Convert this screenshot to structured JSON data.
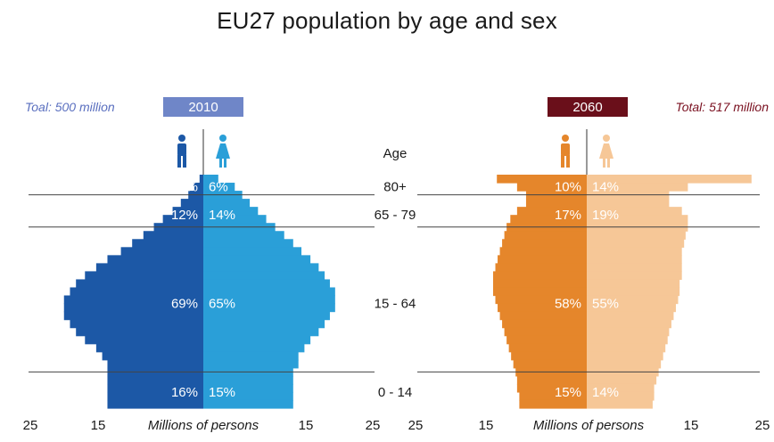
{
  "title": "EU27 population by age and sex",
  "colors": {
    "male_2010": "#1c58a6",
    "female_2010": "#2a9fd8",
    "male_2060": "#e5862b",
    "female_2060": "#f6c797",
    "badge_2010": "#6f86c8",
    "badge_2060": "#6a0f1a",
    "total_2010_text": "#5a6fbf",
    "total_2060_text": "#7a1020",
    "divider": "#444444"
  },
  "icons": {
    "male": "male-figure-icon",
    "female": "female-figure-icon"
  },
  "chart_data": [
    {
      "type": "bar",
      "subtype": "population-pyramid",
      "year": "2010",
      "total_label": "Toal: 500 million",
      "xlabel": "Millions of persons",
      "xticks": [
        "25",
        "15",
        "15",
        "25"
      ],
      "xlim": [
        -25,
        25
      ],
      "age_header": "Age",
      "age_groups": [
        {
          "label": "80+",
          "male_pct": "3%",
          "female_pct": "6%"
        },
        {
          "label": "65 - 79",
          "male_pct": "12%",
          "female_pct": "14%"
        },
        {
          "label": "15 - 64",
          "male_pct": "69%",
          "female_pct": "65%"
        },
        {
          "label": "0 - 14",
          "male_pct": "16%",
          "female_pct": "15%"
        }
      ],
      "age_band_values": {
        "male": [
          0.5,
          1.3,
          2.0,
          3.0,
          4.1,
          5.4,
          6.6,
          8.0,
          9.5,
          11.0,
          12.8,
          14.3,
          15.8,
          17.0,
          17.8,
          18.6,
          18.6,
          18.6,
          17.8,
          17.0,
          15.8,
          14.3,
          13.5,
          12.8,
          12.8,
          12.8,
          12.8,
          12.8,
          12.8
        ],
        "female": [
          2.0,
          4.2,
          5.2,
          6.2,
          7.3,
          8.4,
          9.6,
          10.8,
          12.0,
          13.1,
          14.3,
          15.4,
          16.2,
          16.9,
          17.6,
          17.6,
          17.6,
          16.9,
          16.2,
          15.4,
          14.3,
          13.5,
          12.7,
          12.7,
          12.0,
          12.0,
          12.0,
          12.0,
          12.0
        ]
      }
    },
    {
      "type": "bar",
      "subtype": "population-pyramid",
      "year": "2060",
      "total_label": "Total: 517 million",
      "xlabel": "Millions of persons",
      "xticks": [
        "25",
        "15",
        "15",
        "25"
      ],
      "xlim": [
        -25,
        25
      ],
      "age_groups": [
        {
          "label": "80+",
          "male_pct": "10%",
          "female_pct": "14%"
        },
        {
          "label": "65 - 79",
          "male_pct": "17%",
          "female_pct": "19%"
        },
        {
          "label": "15 - 64",
          "male_pct": "58%",
          "female_pct": "55%"
        },
        {
          "label": "0 - 14",
          "male_pct": "15%",
          "female_pct": "14%"
        }
      ],
      "age_band_values": {
        "male": [
          12.0,
          9.3,
          8.1,
          8.1,
          9.3,
          10.2,
          10.7,
          11.0,
          11.3,
          11.6,
          11.9,
          12.2,
          12.5,
          12.5,
          12.5,
          12.2,
          11.9,
          11.6,
          11.3,
          11.0,
          10.7,
          10.4,
          10.1,
          9.8,
          9.5,
          9.3,
          9.3,
          9.0,
          9.0
        ],
        "female": [
          22.0,
          13.5,
          11.0,
          11.0,
          12.7,
          13.5,
          13.5,
          13.2,
          13.0,
          12.7,
          12.7,
          12.7,
          12.7,
          12.4,
          12.4,
          12.2,
          11.9,
          11.6,
          11.3,
          11.0,
          10.8,
          10.5,
          10.2,
          9.9,
          9.6,
          9.3,
          9.0,
          9.0,
          8.8
        ]
      }
    }
  ]
}
